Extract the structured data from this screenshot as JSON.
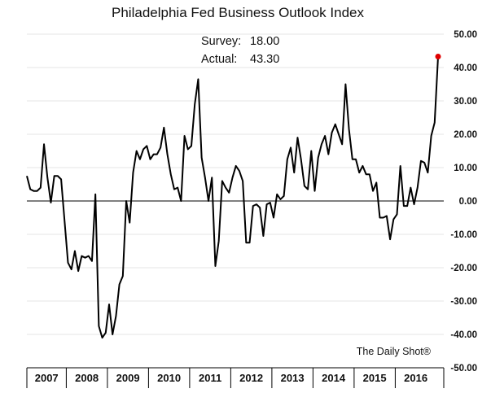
{
  "chart_data": {
    "type": "line",
    "title": "Philadelphia Fed Business Outlook Index",
    "annotations": [
      {
        "label": "Survey:",
        "value": "18.00"
      },
      {
        "label": "Actual:",
        "value": "43.30"
      }
    ],
    "source": "The Daily Shot®",
    "ylim": [
      -50,
      50
    ],
    "y_ticks": [
      "50.00",
      "40.00",
      "30.00",
      "20.00",
      "10.00",
      "0.00",
      "-10.00",
      "-20.00",
      "-30.00",
      "-40.00",
      "-50.00"
    ],
    "x_labels": [
      "2007",
      "2008",
      "2009",
      "2010",
      "2011",
      "2012",
      "2013",
      "2014",
      "2015",
      "2016"
    ],
    "x_start": "2007-01",
    "grid": true,
    "highlight": {
      "index": "last",
      "color": "#e00000"
    },
    "colors": {
      "line": "#000000",
      "grid": "#e6e6e6",
      "zero": "#000000",
      "highlight": "#e00000"
    },
    "series": [
      {
        "values": [
          7.5,
          3.5,
          3,
          3,
          4,
          17,
          7,
          -0.5,
          7.5,
          7.5,
          6.5,
          -6,
          -18.5,
          -20.5,
          -15,
          -21,
          -16.5,
          -17,
          -16.5,
          -18,
          2,
          -37.5,
          -41,
          -39.5,
          -31,
          -40,
          -34.5,
          -25,
          -22.5,
          0,
          -6.5,
          8.5,
          15,
          12.5,
          15.5,
          16.5,
          12.5,
          14,
          14,
          16,
          22,
          14,
          8,
          3.5,
          4,
          0,
          19.5,
          15.5,
          16.5,
          29,
          36.5,
          13,
          7,
          0,
          7,
          -19.5,
          -12,
          6,
          4,
          2.5,
          7,
          10.5,
          9,
          6,
          -12.5,
          -12.5,
          -1.5,
          -1,
          -2,
          -10.5,
          -1,
          -0.5,
          -5,
          2,
          0.5,
          1.5,
          12.5,
          16,
          8.5,
          19,
          12.5,
          4.5,
          3.5,
          15,
          3,
          13,
          17,
          19.5,
          14,
          20.5,
          23,
          20,
          17,
          35,
          21.5,
          12.5,
          12.5,
          8.5,
          10.5,
          8,
          8,
          3,
          5.5,
          -5,
          -5,
          -4.5,
          -11.5,
          -5.5,
          -4,
          10.5,
          -1.5,
          -1.5,
          4,
          -1,
          4,
          12,
          11.5,
          8.5,
          19.5,
          23.5,
          43.3
        ]
      }
    ]
  }
}
